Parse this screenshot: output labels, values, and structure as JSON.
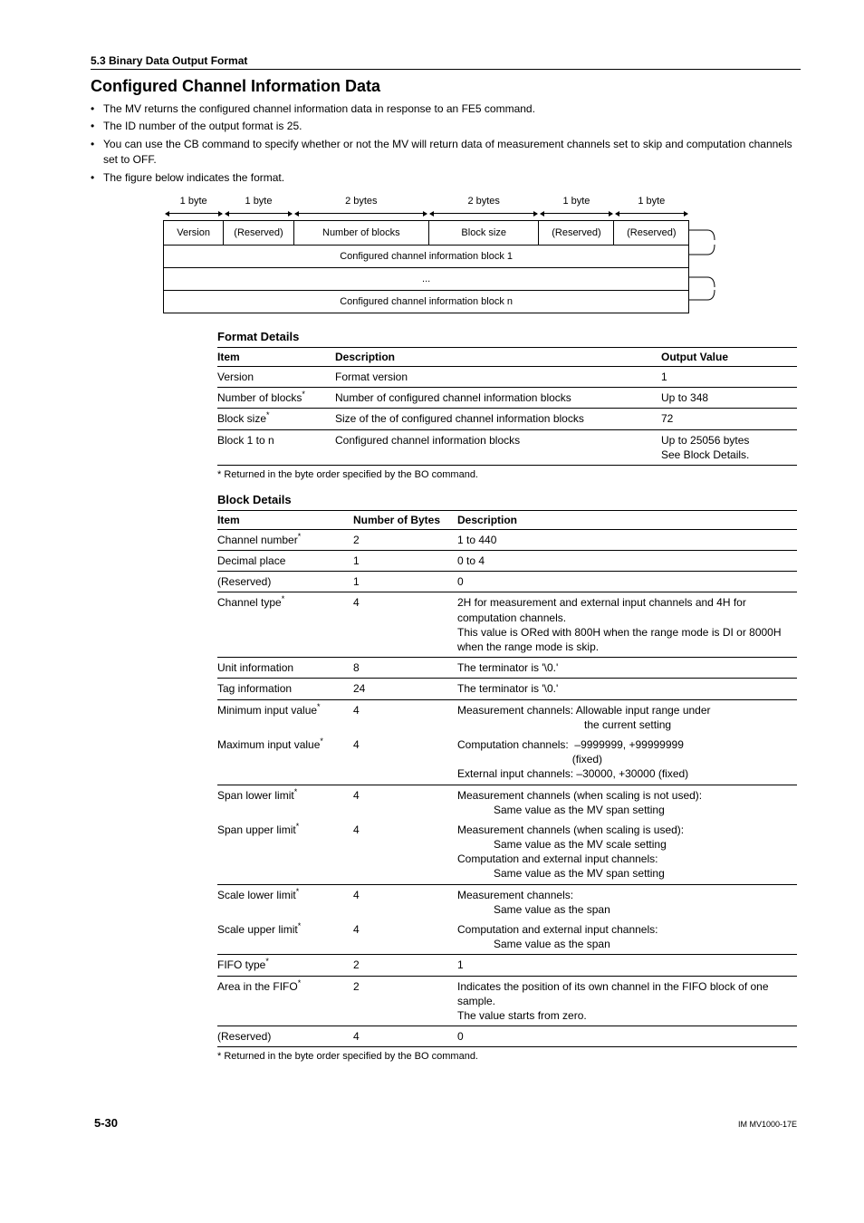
{
  "section_path": "5.3  Binary Data Output Format",
  "title": "Configured Channel Information Data",
  "bullets": [
    "The MV returns the configured channel information data in response to an FE5 command.",
    "The ID number of the output format is 25.",
    "You can use the CB command to specify whether or not the MV will return data of measurement channels set to skip and computation channels set to OFF.",
    "The figure below indicates the format."
  ],
  "diagram": {
    "byte_labels": [
      "1 byte",
      "1 byte",
      "2 bytes",
      "2 bytes",
      "1 byte",
      "1 byte"
    ],
    "header_cells": [
      "Version",
      "(Reserved)",
      "Number of blocks",
      "Block size",
      "(Reserved)",
      "(Reserved)"
    ],
    "block_rows": [
      "Configured channel information block 1",
      "...",
      "Configured channel information block n"
    ]
  },
  "format_details": {
    "heading": "Format Details",
    "columns": [
      "Item",
      "Description",
      "Output Value"
    ],
    "rows": [
      {
        "item": "Version",
        "star": false,
        "desc": "Format version",
        "out": "1"
      },
      {
        "item": "Number of blocks",
        "star": true,
        "desc": "Number of configured channel information blocks",
        "out": "Up to 348"
      },
      {
        "item": "Block size",
        "star": true,
        "desc": "Size of the of configured channel information blocks",
        "out": "72"
      },
      {
        "item": "Block 1 to n",
        "star": false,
        "desc": "Configured channel information blocks",
        "out": "Up to 25056 bytes\nSee Block Details."
      }
    ],
    "footnote": "* Returned in the byte order specified by the BO command."
  },
  "block_details": {
    "heading": "Block Details",
    "columns": [
      "Item",
      "Number of Bytes",
      "Description"
    ],
    "rows": [
      {
        "item": "Channel number",
        "star": true,
        "bytes": "2",
        "desc": "1 to 440",
        "border": true
      },
      {
        "item": "Decimal place",
        "star": false,
        "bytes": "1",
        "desc": "0 to 4",
        "border": true
      },
      {
        "item": "(Reserved)",
        "star": false,
        "bytes": "1",
        "desc": "0",
        "border": true
      },
      {
        "item": "Channel type",
        "star": true,
        "bytes": "4",
        "desc": "2H for measurement and external input channels and 4H for computation channels.\nThis value is ORed with 800H when the range mode is DI or 8000H when the range mode is skip.",
        "border": true
      },
      {
        "item": "Unit information",
        "star": false,
        "bytes": "8",
        "desc": "The terminator is '\\0.'",
        "border": true
      },
      {
        "item": "Tag information",
        "star": false,
        "bytes": "24",
        "desc": "The terminator is '\\0.'",
        "border": true
      },
      {
        "item": "Minimum input value",
        "star": true,
        "bytes": "4",
        "desc": "Measurement channels: Allowable input range under\n                                          the current setting",
        "border": false
      },
      {
        "item": "Maximum input value",
        "star": true,
        "bytes": "4",
        "desc": "Computation channels:  –9999999, +99999999\n                                      (fixed)\nExternal input channels: –30000, +30000 (fixed)",
        "border": true
      },
      {
        "item": "Span lower limit",
        "star": true,
        "bytes": "4",
        "desc": "Measurement channels (when scaling is not used):\n            Same value as the MV span setting",
        "border": false
      },
      {
        "item": "Span upper limit",
        "star": true,
        "bytes": "4",
        "desc": "Measurement channels (when scaling is used):\n            Same value as the MV scale setting\nComputation and external input channels:\n            Same value as the MV span setting",
        "border": true
      },
      {
        "item": "Scale lower limit",
        "star": true,
        "bytes": "4",
        "desc": "Measurement channels:\n            Same value as the span",
        "border": false
      },
      {
        "item": "Scale upper limit",
        "star": true,
        "bytes": "4",
        "desc": "Computation and external input channels:\n            Same value as the span",
        "border": true
      },
      {
        "item": "FIFO type",
        "star": true,
        "bytes": "2",
        "desc": "1",
        "border": true
      },
      {
        "item": "Area in the FIFO",
        "star": true,
        "bytes": "2",
        "desc": "Indicates the position of its own channel in the FIFO block of one sample.\nThe value starts from zero.",
        "border": true
      },
      {
        "item": "(Reserved)",
        "star": false,
        "bytes": "4",
        "desc": "0",
        "border": true
      }
    ],
    "footnote": "* Returned in the byte order specified by the BO command."
  },
  "footer": {
    "page": "5-30",
    "doc": "IM MV1000-17E"
  },
  "widths": {
    "diagram_cols": [
      60,
      70,
      135,
      110,
      75,
      75,
      35
    ]
  }
}
